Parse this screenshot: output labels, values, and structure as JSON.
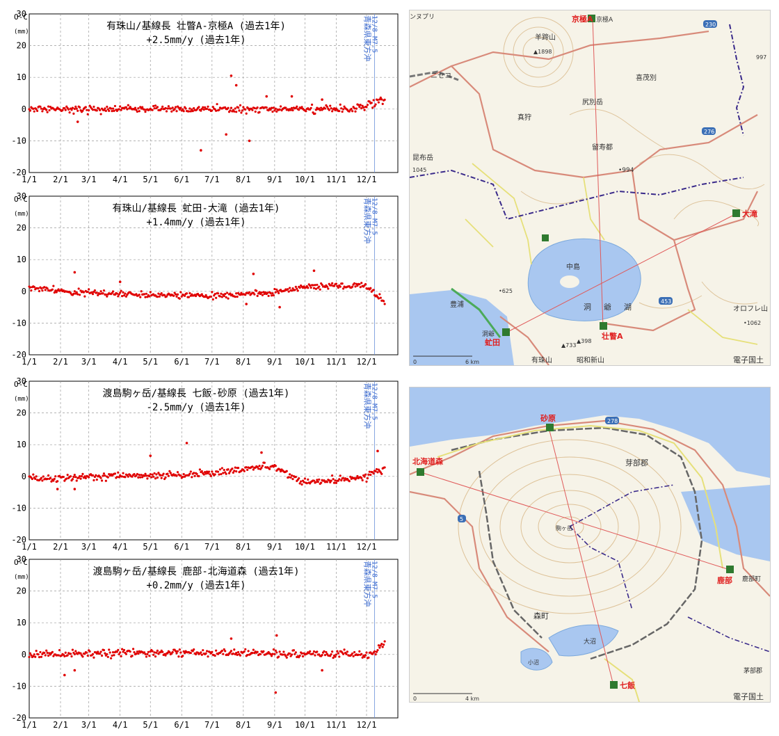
{
  "common": {
    "x_ticks": [
      "1/1",
      "2/1",
      "3/1",
      "4/1",
      "5/1",
      "6/1",
      "7/1",
      "8/1",
      "9/1",
      "10/1",
      "11/1",
      "12/1"
    ],
    "y_label_top": "O-C",
    "y_label_unit": "(mm)",
    "event_label": "青森県東方沖",
    "event_sublabel": "12/8 M7.5"
  },
  "chart_data": [
    {
      "type": "scatter",
      "title": "有珠山/基線長 壮瞥A-京極A (過去1年)",
      "subtitle": "+2.5mm/y (過去1年)",
      "ylim": [
        -20,
        30
      ],
      "yticks": [
        -20,
        -10,
        0,
        10,
        20,
        30
      ],
      "event_day": 342,
      "seed": 11,
      "noise": 1.5,
      "trend": [
        [
          0,
          0
        ],
        [
          320,
          0
        ],
        [
          352,
          3
        ]
      ],
      "outliers": [
        [
          48,
          -4
        ],
        [
          200,
          10.5
        ],
        [
          205,
          7.5
        ],
        [
          195,
          -8
        ],
        [
          218,
          -10
        ],
        [
          170,
          -13
        ],
        [
          235,
          4
        ],
        [
          260,
          4
        ],
        [
          290,
          3
        ]
      ]
    },
    {
      "type": "scatter",
      "title": "有珠山/基線長 虻田-大滝 (過去1年)",
      "subtitle": "+1.4mm/y (過去1年)",
      "ylim": [
        -20,
        30
      ],
      "yticks": [
        -20,
        -10,
        0,
        10,
        20,
        30
      ],
      "event_day": 342,
      "seed": 23,
      "noise": 1.3,
      "trend": [
        [
          0,
          1
        ],
        [
          60,
          -0.5
        ],
        [
          120,
          -1
        ],
        [
          180,
          -1.5
        ],
        [
          240,
          -0.5
        ],
        [
          270,
          1.5
        ],
        [
          330,
          2
        ],
        [
          340,
          0
        ],
        [
          352,
          -3.5
        ]
      ],
      "outliers": [
        [
          45,
          6
        ],
        [
          90,
          3
        ],
        [
          222,
          5.5
        ],
        [
          282,
          6.5
        ],
        [
          248,
          -5
        ],
        [
          215,
          -4
        ]
      ]
    },
    {
      "type": "scatter",
      "title": "渡島駒ヶ岳/基線長 七飯-砂原 (過去1年)",
      "subtitle": "-2.5mm/y (過去1年)",
      "ylim": [
        -20,
        30
      ],
      "yticks": [
        -20,
        -10,
        0,
        10,
        20,
        30
      ],
      "event_day": 342,
      "seed": 37,
      "noise": 1.5,
      "trend": [
        [
          0,
          -1
        ],
        [
          60,
          0
        ],
        [
          150,
          0.5
        ],
        [
          200,
          1.5
        ],
        [
          240,
          3.5
        ],
        [
          270,
          -2
        ],
        [
          300,
          -1.5
        ],
        [
          330,
          -0.5
        ],
        [
          345,
          1
        ],
        [
          352,
          3
        ]
      ],
      "outliers": [
        [
          156,
          10.5
        ],
        [
          120,
          6.5
        ],
        [
          345,
          8
        ],
        [
          230,
          7.5
        ],
        [
          28,
          -4
        ],
        [
          45,
          -4
        ]
      ]
    },
    {
      "type": "scatter",
      "title": "渡島駒ヶ岳/基線長 鹿部-北海道森 (過去1年)",
      "subtitle": "+0.2mm/y (過去1年)",
      "ylim": [
        -20,
        30
      ],
      "yticks": [
        -20,
        -10,
        0,
        10,
        20,
        30
      ],
      "event_day": 342,
      "seed": 53,
      "noise": 1.5,
      "trend": [
        [
          0,
          0
        ],
        [
          100,
          0.5
        ],
        [
          200,
          0.5
        ],
        [
          300,
          0
        ],
        [
          340,
          0
        ],
        [
          352,
          4
        ]
      ],
      "outliers": [
        [
          244,
          -12
        ],
        [
          35,
          -6.5
        ],
        [
          45,
          -5
        ],
        [
          290,
          -5
        ],
        [
          200,
          5
        ],
        [
          245,
          6
        ]
      ]
    }
  ],
  "maps": [
    {
      "stations": [
        {
          "name": "京極A",
          "label": "京極A"
        },
        {
          "name": "大滝",
          "label": "大滝"
        },
        {
          "name": "虻田",
          "label": "虻田"
        },
        {
          "name": "壮瞥A",
          "label": "壮瞥A"
        }
      ],
      "labels": {
        "yotei": "羊蹄山",
        "yotei_h": "▲1898",
        "niseko": "ニセコ",
        "kimobetsu": "喜茂別",
        "shiribetsu": "尻別岳",
        "makkari": "真狩",
        "rusutsu": "留寿都",
        "p994": "•994",
        "konbu": "昆布岳",
        "toyako": "洞爺湖",
        "nakajima": "中島",
        "p625": "•625",
        "toyoura": "豊浦",
        "usu": "有珠山",
        "showa": "昭和新山",
        "p733": "▲733",
        "p398": "▲398",
        "ofure": "オロフレ山",
        "p1062": "•1062",
        "road230": "230",
        "road276": "276",
        "road453": "453",
        "toya_stn": "洞爺",
        "scale": "6 km",
        "scale0": "0",
        "credit": "電子国土",
        "niseko2": "ンヌプリ",
        "p1045": "1045",
        "p997": "997"
      }
    },
    {
      "stations": [
        {
          "name": "砂原",
          "label": "砂原"
        },
        {
          "name": "北海道森",
          "label": "北海道森"
        },
        {
          "name": "鹿部",
          "label": "鹿部"
        },
        {
          "name": "七飯",
          "label": "七飯"
        }
      ],
      "labels": {
        "kayabe": "芽部郡",
        "morimachi": "森町",
        "komagatake": "駒ヶ岳",
        "oonuma": "大沼",
        "konuma": "小沼",
        "shikabe": "鹿部町",
        "kayabe2": "茅部郡",
        "scale": "4 km",
        "scale0": "0",
        "credit": "電子国土",
        "road278": "278",
        "road5": "5"
      }
    }
  ]
}
